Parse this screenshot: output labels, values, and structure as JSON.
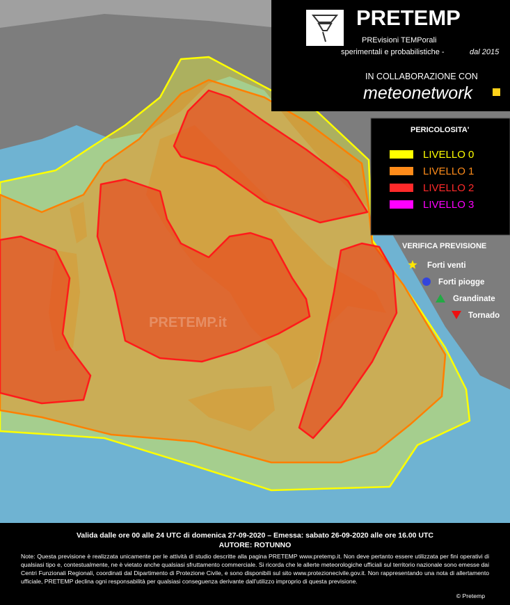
{
  "header": {
    "title": "PRETEMP",
    "subtitle_1": "PREvisioni TEMPorali",
    "subtitle_2": "sperimentali e probabilistiche -",
    "subtitle_since": "dal 2015",
    "collab": "IN COLLABORAZIONE CON",
    "partner": "meteonetwork"
  },
  "legend": {
    "title": "PERICOLOSITA'",
    "levels": [
      "LIVELLO 0",
      "LIVELLO 1",
      "LIVELLO 2",
      "LIVELLO 3"
    ],
    "colors": [
      "#ffff00",
      "#ff8c1a",
      "#ff2a2a",
      "#ff00ff"
    ]
  },
  "verification": {
    "title": "VERIFICA PREVISIONE",
    "items": [
      "Forti venti",
      "Forti piogge",
      "Grandinate",
      "Tornado"
    ]
  },
  "watermark": "PRETEMP.it",
  "footer": {
    "validity": "Valida dalle ore 00 alle 24 UTC di domenica 27-09-2020 – Emessa: sabato 26-09-2020 alle ore 16.00 UTC",
    "author": "AUTORE: ROTUNNO",
    "note": "Note: Questa previsione è realizzata unicamente per le attività di studio descritte alla pagina PRETEMP www.pretemp.it. Non deve pertanto essere utilizzata per fini operativi di qualsiasi tipo e, contestualmente, ne è vietato anche qualsiasi sfruttamento commerciale. Si ricorda che le allerte meteorologiche ufficiali sul territorio nazionale sono emesse dai Centri Funzionali Regionali, coordinati dal Dipartimento di Protezione Civile, e sono disponibili sul sito www.protezionecivile.gov.it. Non rappresentando una nota di allertamento ufficiale, PRETEMP declina ogni responsabilità per qualsiasi conseguenza derivante dall'utilizzo improprio di questa previsione.",
    "copyright": "© Pretemp"
  }
}
